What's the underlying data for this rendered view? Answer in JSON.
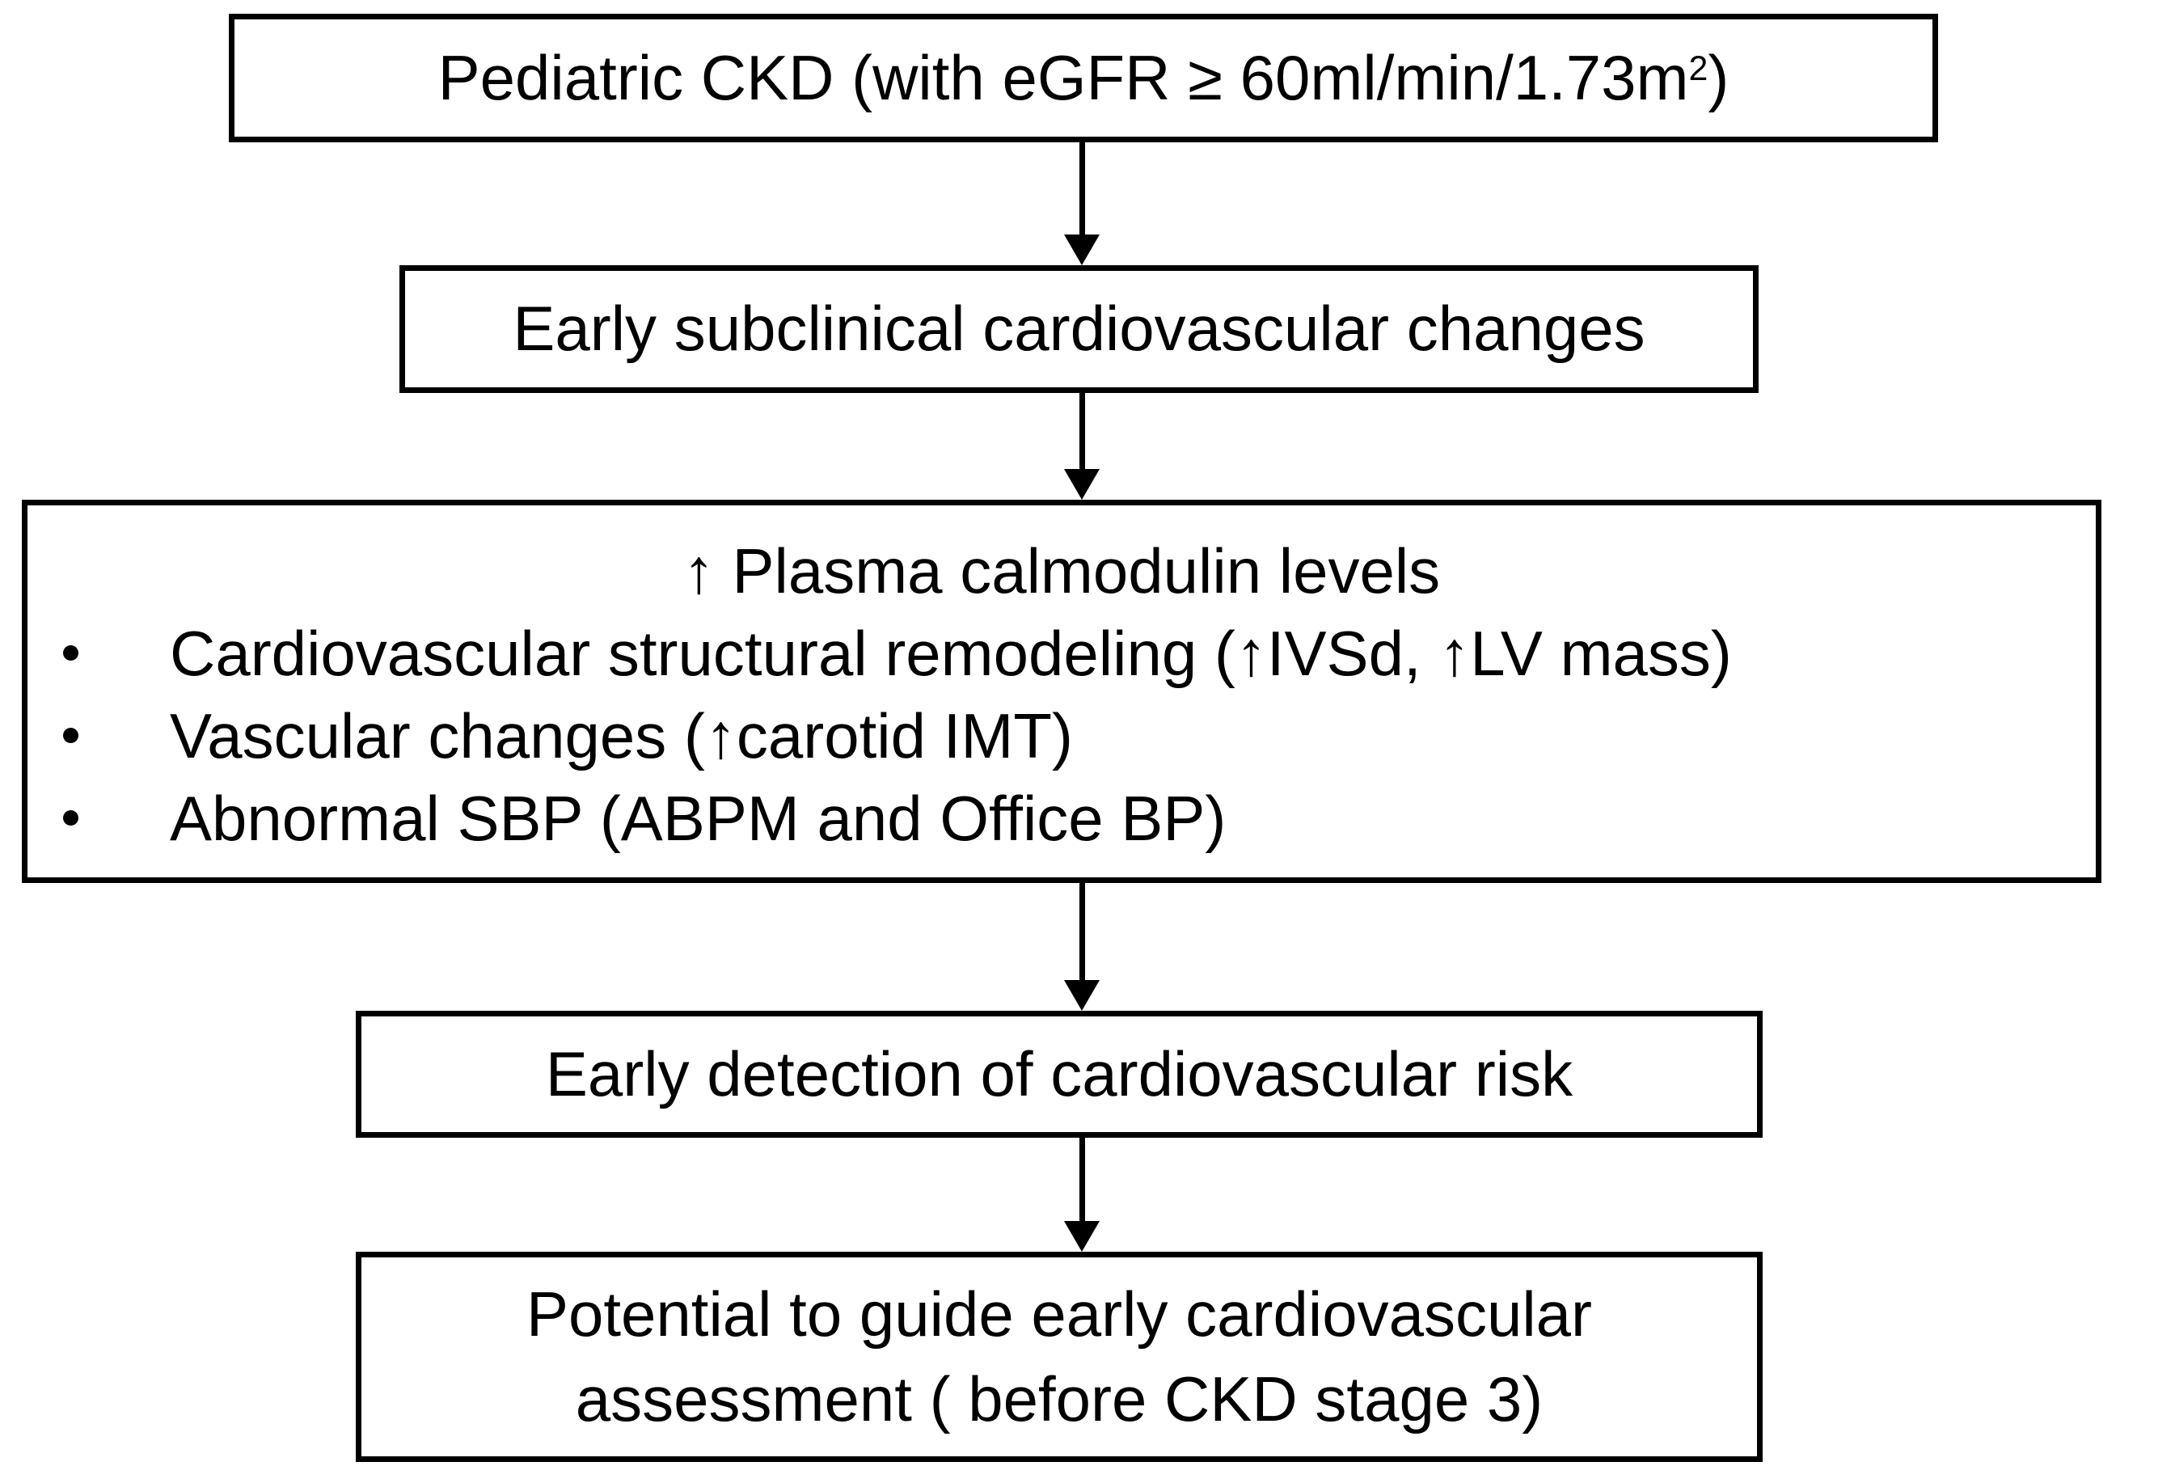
{
  "flowchart": {
    "colors": {
      "border": "#000000",
      "background": "#ffffff",
      "text": "#000000"
    },
    "icons": {
      "down_arrow": "▼",
      "up_arrow": "↑",
      "bullet": "•"
    },
    "boxes": [
      {
        "name": "pediatric-ckd",
        "text": "Pediatric CKD (with eGFR ≥ 60ml/min/1.73m",
        "superscript": "2",
        "suffix": ")"
      },
      {
        "name": "early-subclinical-changes",
        "text": "Early subclinical cardiovascular changes"
      },
      {
        "name": "findings",
        "heading": "↑ Plasma calmodulin levels",
        "bullets": [
          "Cardiovascular structural remodeling (↑IVSd, ↑LV mass)",
          "Vascular changes (↑carotid IMT)",
          "Abnormal SBP (ABPM and Office BP)"
        ]
      },
      {
        "name": "early-detection",
        "text": "Early detection of cardiovascular risk"
      },
      {
        "name": "potential-to-guide",
        "line1": "Potential to guide early cardiovascular",
        "line2": "assessment ( before CKD stage 3)"
      }
    ]
  }
}
